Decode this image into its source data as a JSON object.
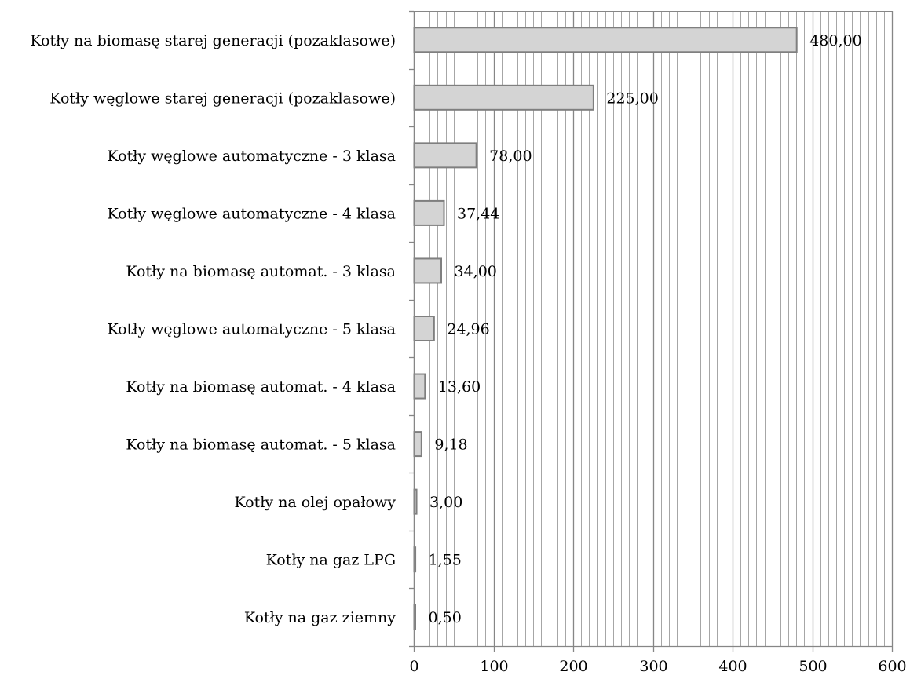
{
  "chart_data": {
    "type": "bar",
    "orientation": "horizontal",
    "title": "",
    "xlabel": "",
    "ylabel": "",
    "categories": [
      "Kotły na biomasę starej generacji (pozaklasowe)",
      "Kotły węglowe starej generacji (pozaklasowe)",
      "Kotły węglowe automatyczne - 3 klasa",
      "Kotły węglowe automatyczne - 4 klasa",
      "Kotły na biomasę automat. - 3 klasa",
      "Kotły węglowe automatyczne - 5 klasa",
      "Kotły na biomasę automat. - 4 klasa",
      "Kotły na biomasę automat. - 5 klasa",
      "Kotły na olej opałowy",
      "Kotły na gaz LPG",
      "Kotły na gaz ziemny"
    ],
    "values": [
      480.0,
      225.0,
      78.0,
      37.44,
      34.0,
      24.96,
      13.6,
      9.18,
      3.0,
      1.55,
      0.5
    ],
    "data_labels": [
      "480,00",
      "225,00",
      "78,00",
      "37,44",
      "34,00",
      "24,96",
      "13,60",
      "9,18",
      "3,00",
      "1,55",
      "0,50"
    ],
    "xlim": [
      0,
      600
    ],
    "x_ticks": [
      0,
      100,
      200,
      300,
      400,
      500,
      600
    ],
    "x_tick_labels": [
      "0",
      "100",
      "200",
      "300",
      "400",
      "500",
      "600"
    ],
    "grid": true,
    "legend": "none",
    "colors": {
      "bar_fill": "#d4d4d4",
      "bar_stroke": "#7f7f7f",
      "major_grid": "#868686",
      "minor_grid": "#a6a6a6",
      "axis": "#868686"
    }
  }
}
